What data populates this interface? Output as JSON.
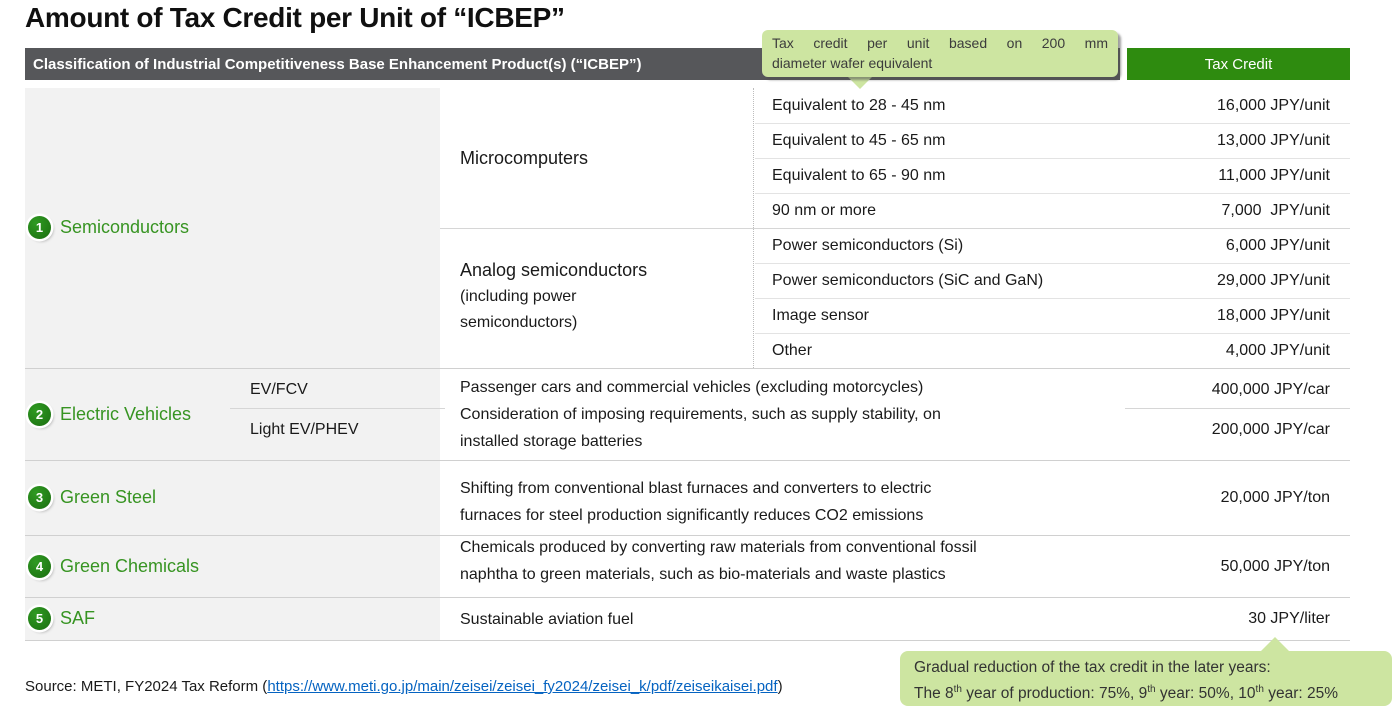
{
  "title": "Amount of Tax Credit per Unit of “ICBEP”",
  "header": {
    "classification": "Classification of Industrial Competitiveness Base Enhancement Product(s) (“ICBEP”)",
    "tax_credit": "Tax Credit"
  },
  "callout_top": {
    "line1": "Tax credit per unit based on 200 mm",
    "line2": "diameter wafer equivalent"
  },
  "sections": {
    "semiconductors": {
      "number": "1",
      "label": "Semiconductors",
      "groups": [
        {
          "type": "Microcomputers",
          "rows": [
            {
              "label": "Equivalent to 28 - 45 nm",
              "value": "16,000 JPY/unit"
            },
            {
              "label": "Equivalent to 45 - 65 nm",
              "value": "13,000 JPY/unit"
            },
            {
              "label": "Equivalent to 65 - 90 nm",
              "value": "11,000 JPY/unit"
            },
            {
              "label": "90 nm or more",
              "value": "7,000  JPY/unit"
            }
          ]
        },
        {
          "type": "Analog semiconductors",
          "note": "(including power semiconductors)",
          "rows": [
            {
              "label": "Power semiconductors (Si)",
              "value": "6,000 JPY/unit"
            },
            {
              "label": "Power semiconductors (SiC and GaN)",
              "value": "29,000 JPY/unit"
            },
            {
              "label": "Image sensor",
              "value": "18,000 JPY/unit"
            },
            {
              "label": "Other",
              "value": "4,000 JPY/unit"
            }
          ]
        }
      ]
    },
    "electric_vehicles": {
      "number": "2",
      "label": "Electric Vehicles",
      "subtypes": [
        {
          "label": "EV/FCV",
          "value": "400,000 JPY/car"
        },
        {
          "label": "Light EV/PHEV",
          "value": "200,000 JPY/car"
        }
      ],
      "desc_lines": [
        "Passenger cars and commercial vehicles (excluding motorcycles)",
        "Consideration of imposing requirements, such as supply stability, on",
        "installed storage batteries"
      ]
    },
    "green_steel": {
      "number": "3",
      "label": "Green Steel",
      "desc_lines": [
        "Shifting from conventional blast furnaces and converters to electric",
        "furnaces for steel production significantly reduces CO2 emissions"
      ],
      "value": "20,000 JPY/ton"
    },
    "green_chemicals": {
      "number": "4",
      "label": "Green Chemicals",
      "desc_lines": [
        "Chemicals produced by converting raw materials from conventional fossil",
        "naphtha to green materials, such as bio-materials and waste plastics"
      ],
      "value": "50,000 JPY/ton"
    },
    "saf": {
      "number": "5",
      "label": "SAF",
      "desc": "Sustainable aviation fuel",
      "value": "30 JPY/liter"
    }
  },
  "source": {
    "prefix": "Source: METI, FY2024 Tax Reform (",
    "link": "https://www.meti.go.jp/main/zeisei/zeisei_fy2024/zeisei_k/pdf/zeiseikaisei.pdf",
    "suffix": ")"
  },
  "callout_bottom": {
    "line1": "Gradual reduction of the tax credit in the later years:",
    "line2_parts": [
      {
        "t": "The 8"
      },
      {
        "sup": "th"
      },
      {
        "t": " year of production: 75%, 9"
      },
      {
        "sup": "th"
      },
      {
        "t": " year: 50%, 10"
      },
      {
        "sup": "th"
      },
      {
        "t": " year: 25%"
      }
    ]
  },
  "colors": {
    "header_gray": "#56575a",
    "header_green": "#2e8b0f",
    "accent_green": "#379422",
    "badge_green": "#1e7c12",
    "callout_light_green": "#cde5a1",
    "panel_gray": "#f2f2f2",
    "link_blue": "#0563c1"
  }
}
